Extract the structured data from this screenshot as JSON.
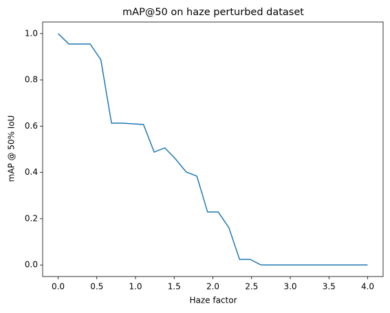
{
  "chart_data": {
    "type": "line",
    "title": "mAP@50 on haze perturbed dataset",
    "x_label": "Haze factor",
    "y_label": "mAP @ 50% IoU",
    "x": [
      0,
      0.138,
      0.276,
      0.414,
      0.552,
      0.69,
      0.828,
      0.966,
      1.103,
      1.241,
      1.379,
      1.517,
      1.655,
      1.793,
      1.931,
      2.069,
      2.207,
      2.345,
      2.483,
      2.621,
      2.759,
      2.897,
      3.034,
      3.172,
      3.31,
      3.448,
      3.586,
      3.724,
      3.862,
      4
    ],
    "values": [
      1.0,
      0.955,
      0.955,
      0.955,
      0.887,
      0.613,
      0.613,
      0.61,
      0.607,
      0.488,
      0.506,
      0.458,
      0.402,
      0.384,
      0.229,
      0.229,
      0.161,
      0.024,
      0.024,
      0,
      0,
      0,
      0,
      0,
      0,
      0,
      0,
      0,
      0,
      0
    ],
    "color": "#1f77b4",
    "xlim": [
      -0.2,
      4.2
    ],
    "ylim": [
      -0.05,
      1.05
    ],
    "xticks": [
      {
        "value": 0,
        "label": "0.0"
      },
      {
        "value": 0.5,
        "label": "0.5"
      },
      {
        "value": 1,
        "label": "1.0"
      },
      {
        "value": 1.5,
        "label": "1.5"
      },
      {
        "value": 2,
        "label": "2.0"
      },
      {
        "value": 2.5,
        "label": "2.5"
      },
      {
        "value": 3,
        "label": "3.0"
      },
      {
        "value": 3.5,
        "label": "3.5"
      },
      {
        "value": 4,
        "label": "4.0"
      }
    ],
    "yticks": [
      {
        "value": 0,
        "label": "0.0"
      },
      {
        "value": 0.2,
        "label": "0.2"
      },
      {
        "value": 0.4,
        "label": "0.4"
      },
      {
        "value": 0.6,
        "label": "0.6"
      },
      {
        "value": 0.8,
        "label": "0.8"
      },
      {
        "value": 1,
        "label": "1.0"
      }
    ]
  }
}
